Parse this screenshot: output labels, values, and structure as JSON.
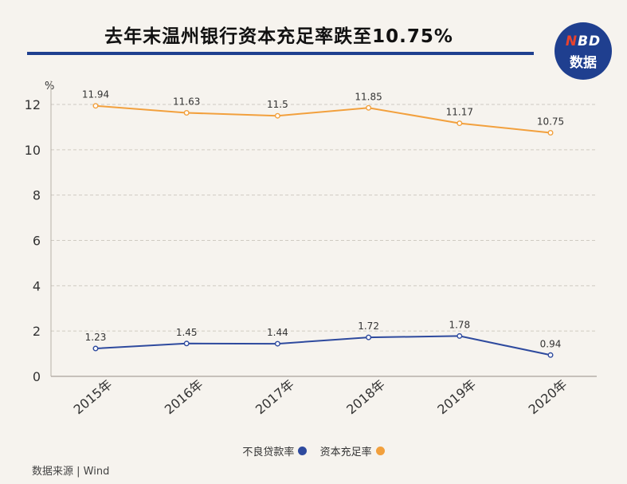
{
  "title": "去年末温州银行资本充足率跌至10.75%",
  "logo": {
    "top_n": "N",
    "top_rest": "BD",
    "bottom": "数据"
  },
  "source": "数据来源 | Wind",
  "colors": {
    "npl": "#2e4a9e",
    "car": "#f2a03d",
    "title_rule": "#1f3f8f",
    "logo_bg": "#1f3f8f"
  },
  "chart_data": {
    "type": "line",
    "categories": [
      "2015年",
      "2016年",
      "2017年",
      "2018年",
      "2019年",
      "2020年"
    ],
    "ylabel": "%",
    "ylim": [
      0,
      12
    ],
    "yticks": [
      0,
      2,
      4,
      6,
      8,
      10,
      12
    ],
    "grid": true,
    "legend_position": "bottom",
    "series": [
      {
        "name": "不良贷款率",
        "values": [
          1.23,
          1.45,
          1.44,
          1.72,
          1.78,
          0.94
        ],
        "labels": [
          "1.23",
          "1.45",
          "1.44",
          "1.72",
          "1.78",
          "0.94"
        ]
      },
      {
        "name": "资本充足率",
        "values": [
          11.94,
          11.63,
          11.5,
          11.85,
          11.17,
          10.75
        ],
        "labels": [
          "11.94",
          "11.63",
          "11.5",
          "11.85",
          "11.17",
          "10.75"
        ]
      }
    ]
  }
}
